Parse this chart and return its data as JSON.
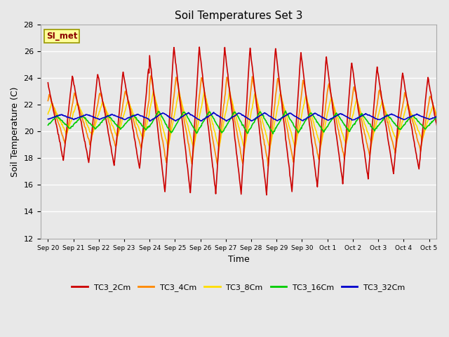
{
  "title": "Soil Temperatures Set 3",
  "xlabel": "Time",
  "ylabel": "Soil Temperature (C)",
  "ylim": [
    12,
    28
  ],
  "yticks": [
    12,
    14,
    16,
    18,
    20,
    22,
    24,
    26,
    28
  ],
  "plot_background": "#e8e8e8",
  "annotation_text": "SI_met",
  "annotation_bg": "#ffff99",
  "annotation_border": "#999900",
  "series": {
    "TC3_2Cm": {
      "color": "#cc0000",
      "linewidth": 1.2
    },
    "TC3_4Cm": {
      "color": "#ff8800",
      "linewidth": 1.2
    },
    "TC3_8Cm": {
      "color": "#ffdd00",
      "linewidth": 1.2
    },
    "TC3_16Cm": {
      "color": "#00cc00",
      "linewidth": 1.2
    },
    "TC3_32Cm": {
      "color": "#0000cc",
      "linewidth": 1.2
    }
  },
  "n_days": 16,
  "pts_per_day": 48,
  "xtick_labels": [
    "Sep 20",
    "Sep 21",
    "Sep 22",
    "Sep 23",
    "Sep 24",
    "Sep 25",
    "Sep 26",
    "Sep 27",
    "Sep 28",
    "Sep 29",
    "Sep 30",
    "Oct 1",
    "Oct 2",
    "Oct 3",
    "Oct 4",
    "Oct 5"
  ],
  "legend_labels": [
    "TC3_2Cm",
    "TC3_4Cm",
    "TC3_8Cm",
    "TC3_16Cm",
    "TC3_32Cm"
  ]
}
